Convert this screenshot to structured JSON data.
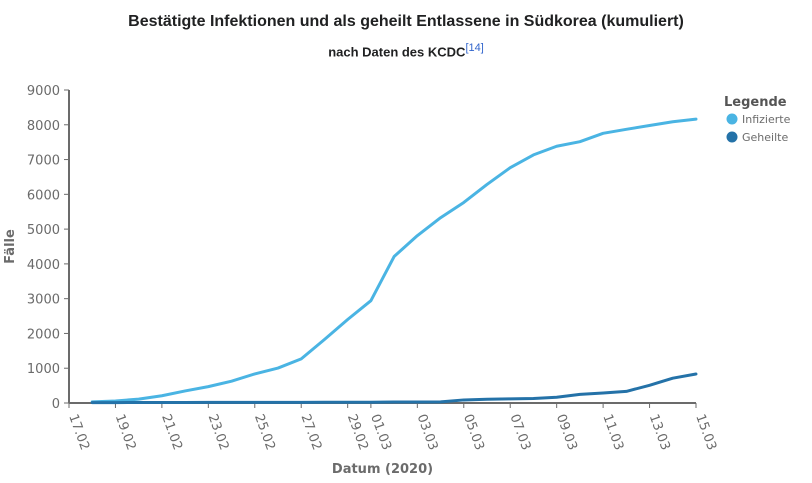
{
  "title": "Bestätigte Infektionen und als geheilt Entlassene in Südkorea (kumuliert)",
  "subtitle": "nach Daten des KCDC",
  "footnote": "[14]",
  "colors": {
    "infizierte": "#4ab4e3",
    "geheilte": "#2472a8",
    "axis": "#6b6b6b"
  },
  "chart_data": {
    "type": "line",
    "title": "Bestätigte Infektionen und als geheilt Entlassene in Südkorea (kumuliert)",
    "subtitle": "nach Daten des KCDC",
    "xlabel": "Datum (2020)",
    "ylabel": "Fälle",
    "x": [
      "18.02",
      "19.02",
      "20.02",
      "21.02",
      "22.02",
      "23.02",
      "24.02",
      "25.02",
      "26.02",
      "27.02",
      "28.02",
      "29.02",
      "01.03",
      "02.03",
      "03.03",
      "04.03",
      "05.03",
      "06.03",
      "07.03",
      "08.03",
      "09.03",
      "10.03",
      "11.03",
      "12.03",
      "13.03",
      "14.03",
      "15.03"
    ],
    "x_ticks": [
      "17.02",
      "19.02",
      "21.02",
      "23.02",
      "25.02",
      "27.02",
      "29.02",
      "01.03",
      "03.03",
      "05.03",
      "07.03",
      "09.03",
      "11.03",
      "13.03",
      "15.03"
    ],
    "y_ticks": [
      0,
      1000,
      2000,
      3000,
      4000,
      5000,
      6000,
      7000,
      8000,
      9000
    ],
    "ylim": [
      0,
      9000
    ],
    "legend_title": "Legende",
    "legend_position": "top-right",
    "grid": false,
    "series": [
      {
        "name": "Infizierte",
        "values": [
          31,
          58,
          111,
          209,
          346,
          471,
          628,
          836,
          1005,
          1268,
          1825,
          2401,
          2942,
          4212,
          4812,
          5328,
          5766,
          6284,
          6767,
          7134,
          7382,
          7513,
          7755,
          7869,
          7979,
          8086,
          8162
        ]
      },
      {
        "name": "Geheilte",
        "values": [
          12,
          12,
          16,
          16,
          16,
          17,
          17,
          17,
          17,
          18,
          22,
          22,
          23,
          28,
          28,
          34,
          88,
          108,
          118,
          130,
          166,
          247,
          288,
          333,
          510,
          714,
          834
        ]
      }
    ]
  }
}
